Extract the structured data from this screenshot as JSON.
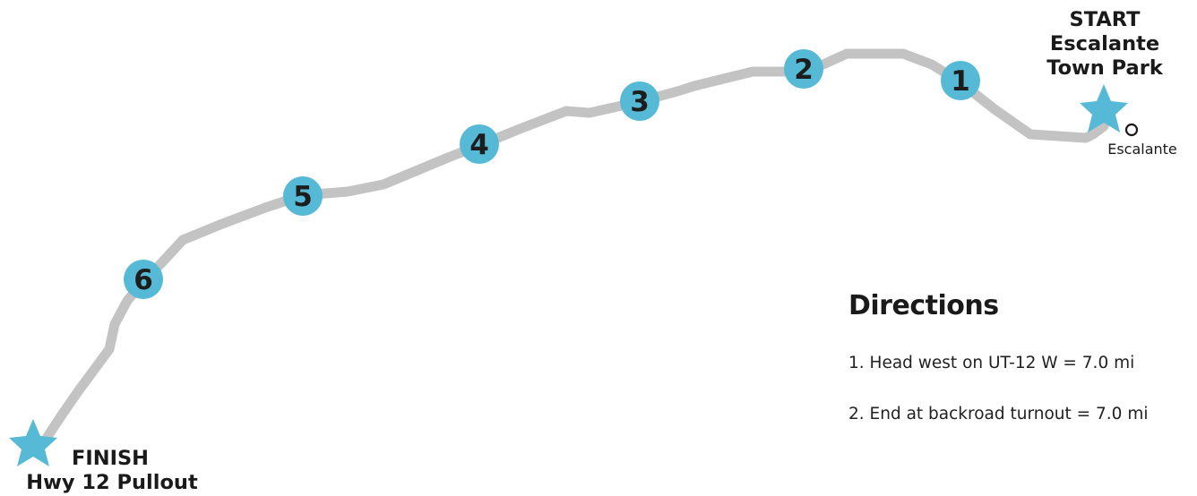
{
  "colors": {
    "route": "#c3c3c3",
    "marker": "#56b9d6",
    "text": "#1a1a1a",
    "background": "#ffffff"
  },
  "route": {
    "markers": [
      {
        "label": "1"
      },
      {
        "label": "2"
      },
      {
        "label": "3"
      },
      {
        "label": "4"
      },
      {
        "label": "5"
      },
      {
        "label": "6"
      }
    ]
  },
  "start": {
    "title": "START",
    "line1": "Escalante",
    "line2": "Town Park",
    "icon": "star-icon"
  },
  "finish": {
    "title": "FINISH",
    "line1": "Hwy 12 Pullout",
    "icon": "star-icon"
  },
  "town": {
    "name": "Escalante",
    "icon": "circle-icon"
  },
  "directions": {
    "title": "Directions",
    "steps": [
      "1. Head west on UT-12 W = 7.0 mi",
      "2. End at backroad turnout = 7.0 mi"
    ]
  }
}
